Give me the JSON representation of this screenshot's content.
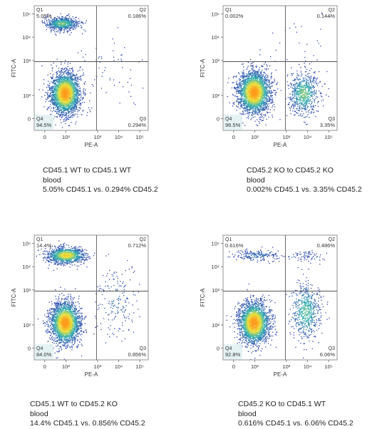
{
  "colors": {
    "low": "#2c3fb0",
    "mid": "#2fb0b0",
    "high": "#e8e23a",
    "peak": "#ff9b1a",
    "gate": "#555555"
  },
  "chart_data": [
    {
      "type": "scatter",
      "xlabel": "PE-A",
      "ylabel": "FITC-A",
      "x_ticks": [
        "0",
        "10²",
        "10³",
        "10⁴",
        "10⁵"
      ],
      "y_ticks": [
        "0",
        "10²",
        "10³",
        "10⁴",
        "10⁵"
      ],
      "quadrants": [
        {
          "name": "Q1",
          "percent": "5.05%"
        },
        {
          "name": "Q2",
          "percent": "0.186%"
        },
        {
          "name": "Q3",
          "percent": "0.294%"
        },
        {
          "name": "Q4",
          "percent": "94.5%"
        }
      ],
      "caption": [
        "CD45.1 WT to CD45.1 WT",
        "blood",
        "5.05% CD45.1 vs. 0.294% CD45.2"
      ],
      "populations": [
        {
          "x": 1.45,
          "y": 1.6,
          "sx": 0.35,
          "sy": 0.45,
          "n": 2600
        },
        {
          "x": 1.3,
          "y": 4.6,
          "sx": 0.4,
          "sy": 0.14,
          "n": 700
        },
        {
          "x": 3.5,
          "y": 2.6,
          "sx": 0.9,
          "sy": 0.7,
          "n": 60
        }
      ]
    },
    {
      "type": "scatter",
      "xlabel": "PE-A",
      "ylabel": "FITC-A",
      "x_ticks": [
        "0",
        "10²",
        "10³",
        "10⁴",
        "10⁵"
      ],
      "y_ticks": [
        "0",
        "10²",
        "10³",
        "10⁴",
        "10⁵"
      ],
      "quadrants": [
        {
          "name": "Q1",
          "percent": "0.002%"
        },
        {
          "name": "Q2",
          "percent": "0.144%"
        },
        {
          "name": "Q3",
          "percent": "3.35%"
        },
        {
          "name": "Q4",
          "percent": "96.5%"
        }
      ],
      "caption": [
        "CD45.2 KO to CD45.2 KO",
        "blood",
        "0.002% CD45.1 vs. 3.35% CD45.2"
      ],
      "populations": [
        {
          "x": 1.45,
          "y": 1.65,
          "sx": 0.38,
          "sy": 0.45,
          "n": 2600
        },
        {
          "x": 3.8,
          "y": 1.6,
          "sx": 0.35,
          "sy": 0.45,
          "n": 700
        },
        {
          "x": 3.6,
          "y": 3.9,
          "sx": 0.8,
          "sy": 0.6,
          "n": 25
        }
      ]
    },
    {
      "type": "scatter",
      "xlabel": "PE-A",
      "ylabel": "FITC-A",
      "x_ticks": [
        "0",
        "10²",
        "10³",
        "10⁴",
        "10⁵"
      ],
      "y_ticks": [
        "0",
        "10²",
        "10³",
        "10⁴",
        "10⁵"
      ],
      "quadrants": [
        {
          "name": "Q1",
          "percent": "14.4%"
        },
        {
          "name": "Q2",
          "percent": "0.712%"
        },
        {
          "name": "Q3",
          "percent": "0.856%"
        },
        {
          "name": "Q4",
          "percent": "84.0%"
        }
      ],
      "caption": [
        "CD45.1 WT to CD45.2 KO",
        "blood",
        "14.4% CD45.1 vs. 0.856% CD45.2"
      ],
      "populations": [
        {
          "x": 1.45,
          "y": 1.6,
          "sx": 0.35,
          "sy": 0.45,
          "n": 2400
        },
        {
          "x": 1.5,
          "y": 4.5,
          "sx": 0.45,
          "sy": 0.18,
          "n": 1100
        },
        {
          "x": 3.8,
          "y": 2.5,
          "sx": 0.5,
          "sy": 0.8,
          "n": 180
        }
      ]
    },
    {
      "type": "scatter",
      "xlabel": "PE-A",
      "ylabel": "FITC-A",
      "x_ticks": [
        "0",
        "10²",
        "10³",
        "10⁴",
        "10⁵"
      ],
      "y_ticks": [
        "0",
        "10²",
        "10³",
        "10⁴",
        "10⁵"
      ],
      "quadrants": [
        {
          "name": "Q1",
          "percent": "0.616%"
        },
        {
          "name": "Q2",
          "percent": "0.486%"
        },
        {
          "name": "Q3",
          "percent": "6.06%"
        },
        {
          "name": "Q4",
          "percent": "92.8%"
        }
      ],
      "caption": [
        "CD45.2 KO to CD45.1 WT",
        "blood",
        "0.616% CD45.1 vs. 6.06% CD45.2"
      ],
      "populations": [
        {
          "x": 1.45,
          "y": 1.6,
          "sx": 0.36,
          "sy": 0.45,
          "n": 2400
        },
        {
          "x": 3.9,
          "y": 2.1,
          "sx": 0.35,
          "sy": 0.6,
          "n": 600
        },
        {
          "x": 1.6,
          "y": 4.5,
          "sx": 0.55,
          "sy": 0.12,
          "n": 200
        },
        {
          "x": 3.9,
          "y": 4.5,
          "sx": 0.4,
          "sy": 0.12,
          "n": 70
        }
      ]
    }
  ]
}
